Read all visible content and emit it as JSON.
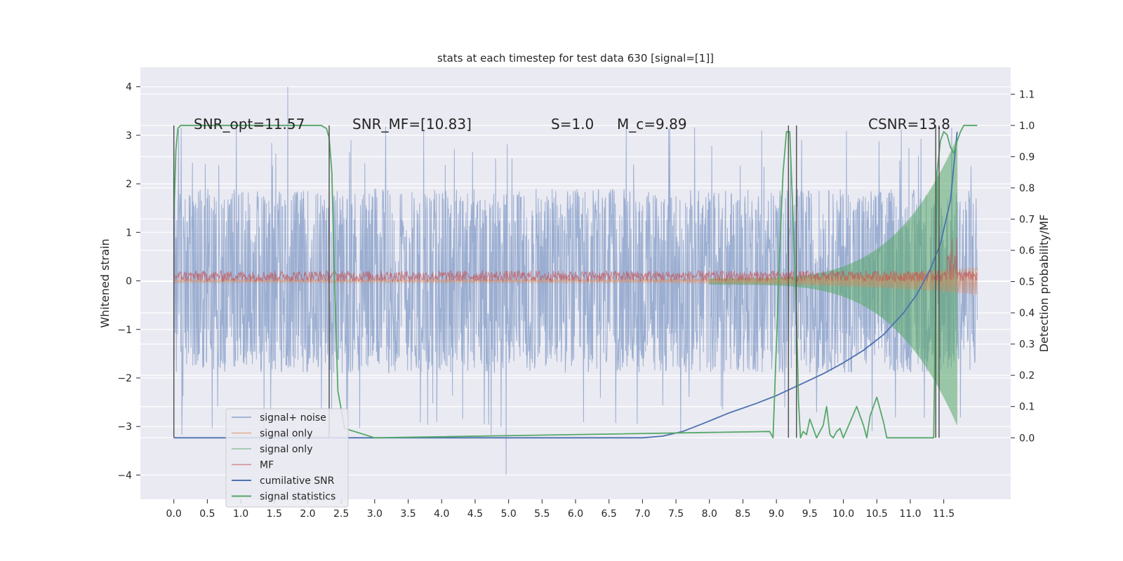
{
  "chart_data": {
    "type": "line",
    "title": "stats at each timestep for test data 630 [signal=[1]]",
    "xlabel": "",
    "ylabel_left": "Whitened strain",
    "ylabel_right": "Detection probability/MF",
    "xlim": [
      -0.5,
      12.5
    ],
    "ylim_left": [
      -4.5,
      4.4
    ],
    "ylim_right": [
      -0.197,
      1.186
    ],
    "xticks": [
      "0.0",
      "0.5",
      "1.0",
      "1.5",
      "2.0",
      "2.5",
      "3.0",
      "3.5",
      "4.0",
      "4.5",
      "5.0",
      "5.5",
      "6.0",
      "6.5",
      "7.0",
      "7.5",
      "8.0",
      "8.5",
      "9.0",
      "9.5",
      "10.0",
      "10.5",
      "11.0",
      "11.5"
    ],
    "yticks_left": [
      "4",
      "3",
      "2",
      "1",
      "0",
      "−1",
      "−2",
      "−3",
      "−4"
    ],
    "yticks_right": [
      "1.1",
      "1.0",
      "0.9",
      "0.8",
      "0.7",
      "0.6",
      "0.5",
      "0.4",
      "0.3",
      "0.2",
      "0.1",
      "0.0"
    ],
    "grid": true,
    "legend_placement": "lower-left",
    "annotations": [
      {
        "text": "SNR_opt=11.57"
      },
      {
        "text": "SNR_MF=[10.83]"
      },
      {
        "text": "S=1.0"
      },
      {
        "text": "M_c=9.89"
      },
      {
        "text": "CSNR=13.8"
      }
    ],
    "vertical_markers_x": [
      0.0,
      2.32,
      9.18,
      9.3,
      11.38,
      11.43
    ],
    "series": [
      {
        "name": "signal+ noise",
        "axis": "left",
        "color": "#4c72b0",
        "style": "dense noise band",
        "x_range": [
          0.0,
          12.0
        ],
        "amplitude": 1.9,
        "peak_max": 4.0,
        "peak_min": -4.0
      },
      {
        "name": "signal only",
        "axis": "left",
        "color": "#dd8452",
        "style": "chirp",
        "x_range": [
          0.0,
          12.0
        ]
      },
      {
        "name": "signal only",
        "axis": "right",
        "color": "#55a868",
        "style": "chirp envelope",
        "x_range": [
          8.0,
          11.7
        ],
        "end_amplitude": 0.45
      },
      {
        "name": "MF",
        "axis": "right",
        "color": "#c44e52",
        "style": "noisy band",
        "x_range": [
          0.0,
          12.0
        ],
        "band": [
          0.5,
          0.535
        ]
      },
      {
        "name": "cumilative SNR",
        "axis": "right",
        "color": "#4c72b0",
        "x": [
          0.0,
          7.0,
          7.3,
          7.6,
          7.9,
          8.3,
          8.7,
          9.0,
          9.3,
          9.7,
          10.0,
          10.3,
          10.6,
          10.9,
          11.1,
          11.3,
          11.45,
          11.6,
          11.7
        ],
        "y": [
          0.0,
          0.0,
          0.005,
          0.02,
          0.045,
          0.08,
          0.11,
          0.135,
          0.165,
          0.205,
          0.24,
          0.28,
          0.33,
          0.4,
          0.46,
          0.54,
          0.62,
          0.76,
          0.98
        ]
      },
      {
        "name": "signal statistics",
        "axis": "right",
        "color": "#55a868",
        "x": [
          0.0,
          0.03,
          0.06,
          0.1,
          0.2,
          2.2,
          2.28,
          2.32,
          2.36,
          2.4,
          2.45,
          2.55,
          3.0,
          8.9,
          8.95,
          9.0,
          9.05,
          9.1,
          9.15,
          9.2,
          9.25,
          9.3,
          9.33,
          9.36,
          9.4,
          9.45,
          9.5,
          9.6,
          9.7,
          9.75,
          9.8,
          9.85,
          9.9,
          9.95,
          10.0,
          10.1,
          10.2,
          10.3,
          10.35,
          10.4,
          10.5,
          10.6,
          10.65,
          10.7,
          10.75,
          10.8,
          10.9,
          11.0,
          11.2,
          11.3,
          11.35,
          11.4,
          11.45,
          11.5,
          11.55,
          11.6,
          11.65,
          11.7,
          11.75,
          11.8,
          11.9,
          12.0
        ],
        "y": [
          0.7,
          0.92,
          0.99,
          1.0,
          1.0,
          1.0,
          0.99,
          0.96,
          0.85,
          0.5,
          0.15,
          0.03,
          0.0,
          0.02,
          0.0,
          0.3,
          0.6,
          0.85,
          0.98,
          0.98,
          0.7,
          0.4,
          0.12,
          0.0,
          0.02,
          0.01,
          0.06,
          0.0,
          0.04,
          0.1,
          0.01,
          0.0,
          0.02,
          0.03,
          0.0,
          0.05,
          0.1,
          0.04,
          0.0,
          0.07,
          0.13,
          0.05,
          0.0,
          0.0,
          0.0,
          0.0,
          0.0,
          0.0,
          0.0,
          0.0,
          0.0,
          0.85,
          0.95,
          0.98,
          0.97,
          0.93,
          0.91,
          0.95,
          0.98,
          1.0,
          1.0,
          1.0
        ]
      }
    ]
  }
}
